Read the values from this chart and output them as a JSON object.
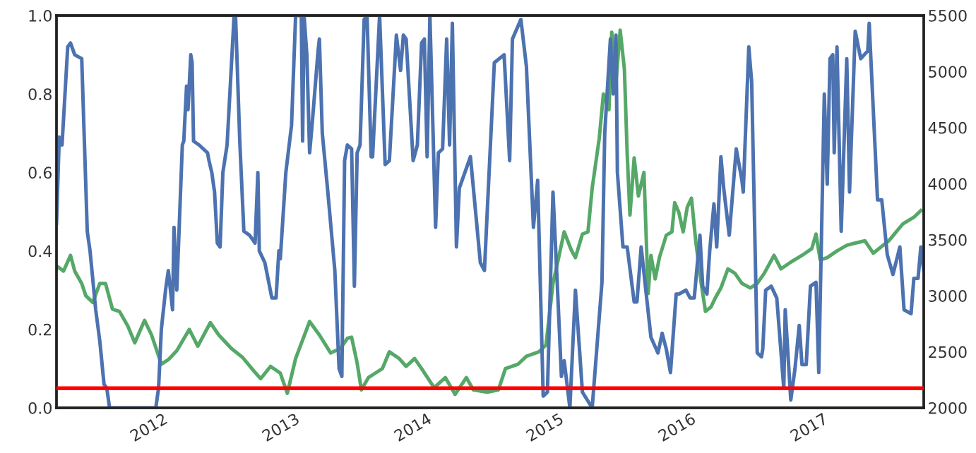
{
  "chart_data": {
    "type": "line",
    "xlim": [
      2011.195,
      2017.763
    ],
    "xticks": [
      2012,
      2013,
      2014,
      2015,
      2016,
      2017
    ],
    "ylim": [
      0,
      1
    ],
    "yticks": [
      {
        "value": 0,
        "label": "0.0"
      },
      {
        "value": 0.2,
        "label": "0.2"
      },
      {
        "value": 0.4,
        "label": "0.4"
      },
      {
        "value": 0.6,
        "label": "0.6"
      },
      {
        "value": 0.8,
        "label": "0.8"
      },
      {
        "value": 1,
        "label": "1.0"
      }
    ],
    "y2lim": [
      2000,
      5500
    ],
    "y2ticks": [
      2000,
      2500,
      3000,
      3500,
      4000,
      4500,
      5000,
      5500
    ],
    "grid": false,
    "line_style": "solid",
    "ref_lines": [
      {
        "axis": "y",
        "value": 0.05,
        "color": "#ff0000",
        "line_style": "solid"
      }
    ],
    "series": [
      {
        "color": "#4c72b0",
        "x": [
          2011.195,
          2011.216,
          2011.237,
          2011.28,
          2011.301,
          2011.333,
          2011.386,
          2011.428,
          2011.449,
          2011.492,
          2011.523,
          2011.555,
          2011.576,
          2011.597,
          2011.947,
          2011.968,
          2011.989,
          2012.021,
          2012.042,
          2012.074,
          2012.085,
          2012.106,
          2012.148,
          2012.159,
          2012.18,
          2012.191,
          2012.212,
          2012.222,
          2012.233,
          2012.275,
          2012.339,
          2012.35,
          2012.371,
          2012.392,
          2012.413,
          2012.434,
          2012.455,
          2012.487,
          2012.54,
          2012.551,
          2012.583,
          2012.614,
          2012.657,
          2012.699,
          2012.72,
          2012.731,
          2012.773,
          2012.826,
          2012.858,
          2012.879,
          2012.89,
          2012.932,
          2012.975,
          2013.006,
          2013.049,
          2013.059,
          2013.07,
          2013.091,
          2013.112,
          2013.133,
          2013.176,
          2013.186,
          2013.208,
          2013.25,
          2013.303,
          2013.335,
          2013.356,
          2013.377,
          2013.398,
          2013.43,
          2013.451,
          2013.472,
          2013.494,
          2013.525,
          2013.547,
          2013.578,
          2013.589,
          2013.642,
          2013.684,
          2013.716,
          2013.769,
          2013.801,
          2013.822,
          2013.843,
          2013.896,
          2013.928,
          2013.96,
          2013.981,
          2014.002,
          2014.023,
          2014.066,
          2014.087,
          2014.119,
          2014.15,
          2014.172,
          2014.193,
          2014.224,
          2014.246,
          2014.33,
          2014.405,
          2014.436,
          2014.511,
          2014.585,
          2014.627,
          2014.648,
          2014.712,
          2014.754,
          2014.807,
          2014.839,
          2014.881,
          2014.913,
          2014.955,
          2014.987,
          2015.019,
          2015.04,
          2015.083,
          2015.125,
          2015.178,
          2015.252,
          2015.326,
          2015.347,
          2015.39,
          2015.411,
          2015.432,
          2015.443,
          2015.485,
          2015.517,
          2015.57,
          2015.591,
          2015.623,
          2015.655,
          2015.697,
          2015.75,
          2015.782,
          2015.813,
          2015.845,
          2015.888,
          2015.909,
          2015.962,
          2015.994,
          2016.025,
          2016.068,
          2016.089,
          2016.121,
          2016.142,
          2016.174,
          2016.195,
          2016.227,
          2016.248,
          2016.29,
          2016.343,
          2016.386,
          2016.396,
          2016.438,
          2016.46,
          2016.502,
          2016.534,
          2016.544,
          2016.566,
          2016.608,
          2016.65,
          2016.703,
          2016.714,
          2016.756,
          2016.788,
          2016.82,
          2016.841,
          2016.873,
          2016.905,
          2016.947,
          2016.968,
          2017.01,
          2017.032,
          2017.053,
          2017.074,
          2017.085,
          2017.106,
          2017.138,
          2017.18,
          2017.201,
          2017.244,
          2017.286,
          2017.339,
          2017.35,
          2017.413,
          2017.445,
          2017.487,
          2017.53,
          2017.582,
          2017.614,
          2017.667,
          2017.688,
          2017.72,
          2017.741,
          2017.763
        ],
        "values": [
          0.47,
          0.69,
          0.67,
          0.92,
          0.93,
          0.9,
          0.89,
          0.45,
          0.4,
          0.25,
          0.17,
          0.06,
          0.05,
          0.0,
          0.0,
          0.05,
          0.2,
          0.3,
          0.35,
          0.25,
          0.46,
          0.3,
          0.67,
          0.68,
          0.82,
          0.76,
          0.9,
          0.88,
          0.68,
          0.67,
          0.65,
          0.63,
          0.6,
          0.55,
          0.42,
          0.41,
          0.6,
          0.67,
          1.0,
          1.0,
          0.68,
          0.45,
          0.44,
          0.42,
          0.6,
          0.4,
          0.37,
          0.28,
          0.28,
          0.4,
          0.38,
          0.6,
          0.72,
          1.0,
          1.0,
          0.68,
          1.0,
          0.9,
          0.65,
          0.73,
          0.91,
          0.94,
          0.7,
          0.55,
          0.35,
          0.1,
          0.08,
          0.63,
          0.67,
          0.66,
          0.31,
          0.65,
          0.67,
          0.99,
          1.0,
          0.64,
          0.64,
          1.0,
          0.62,
          0.63,
          0.95,
          0.86,
          0.95,
          0.94,
          0.63,
          0.67,
          0.93,
          0.94,
          0.64,
          1.0,
          0.46,
          0.65,
          0.66,
          0.94,
          0.67,
          0.98,
          0.41,
          0.56,
          0.64,
          0.37,
          0.35,
          0.88,
          0.9,
          0.63,
          0.94,
          0.99,
          0.87,
          0.46,
          0.58,
          0.03,
          0.04,
          0.55,
          0.32,
          0.08,
          0.12,
          0.0,
          0.3,
          0.04,
          0.0,
          0.32,
          0.7,
          0.94,
          0.8,
          0.95,
          0.6,
          0.41,
          0.41,
          0.27,
          0.27,
          0.41,
          0.31,
          0.18,
          0.14,
          0.19,
          0.15,
          0.09,
          0.29,
          0.29,
          0.3,
          0.28,
          0.28,
          0.44,
          0.31,
          0.29,
          0.4,
          0.52,
          0.41,
          0.64,
          0.56,
          0.44,
          0.66,
          0.58,
          0.55,
          0.92,
          0.83,
          0.14,
          0.13,
          0.15,
          0.3,
          0.31,
          0.28,
          0.05,
          0.25,
          0.02,
          0.1,
          0.21,
          0.11,
          0.11,
          0.31,
          0.32,
          0.09,
          0.8,
          0.57,
          0.89,
          0.9,
          0.65,
          0.92,
          0.45,
          0.89,
          0.55,
          0.96,
          0.89,
          0.91,
          0.98,
          0.53,
          0.53,
          0.39,
          0.34,
          0.41,
          0.25,
          0.24,
          0.33,
          0.33,
          0.41,
          0.35
        ]
      },
      {
        "color": "#55a868",
        "axis": "y2",
        "x": [
          2011.195,
          2011.205,
          2011.248,
          2011.301,
          2011.333,
          2011.386,
          2011.417,
          2011.47,
          2011.523,
          2011.566,
          2011.619,
          2011.672,
          2011.735,
          2011.788,
          2011.862,
          2011.915,
          2011.989,
          2012.042,
          2012.106,
          2012.201,
          2012.265,
          2012.36,
          2012.424,
          2012.519,
          2012.604,
          2012.689,
          2012.741,
          2012.816,
          2012.89,
          2012.943,
          2013.006,
          2013.112,
          2013.186,
          2013.271,
          2013.345,
          2013.398,
          2013.43,
          2013.472,
          2013.504,
          2013.557,
          2013.61,
          2013.663,
          2013.716,
          2013.79,
          2013.843,
          2013.907,
          2013.96,
          2014.055,
          2014.14,
          2014.214,
          2014.299,
          2014.352,
          2014.458,
          2014.542,
          2014.595,
          2014.691,
          2014.754,
          2014.849,
          2014.902,
          2014.955,
          2014.987,
          2015.04,
          2015.093,
          2015.125,
          2015.178,
          2015.22,
          2015.252,
          2015.305,
          2015.337,
          2015.379,
          2015.4,
          2015.432,
          2015.464,
          2015.496,
          2015.517,
          2015.538,
          2015.57,
          2015.602,
          2015.644,
          2015.676,
          2015.697,
          2015.729,
          2015.761,
          2015.813,
          2015.856,
          2015.877,
          2015.909,
          2015.941,
          2015.972,
          2016.004,
          2016.036,
          2016.078,
          2016.11,
          2016.152,
          2016.184,
          2016.227,
          2016.28,
          2016.333,
          2016.386,
          2016.449,
          2016.502,
          2016.555,
          2016.629,
          2016.682,
          2016.756,
          2016.841,
          2016.915,
          2016.947,
          2016.979,
          2017.032,
          2017.106,
          2017.18,
          2017.244,
          2017.318,
          2017.381,
          2017.498,
          2017.604,
          2017.688,
          2017.741
        ],
        "values": [
          3240,
          3260,
          3220,
          3360,
          3220,
          3110,
          3000,
          2940,
          3110,
          3110,
          2880,
          2860,
          2730,
          2580,
          2780,
          2650,
          2390,
          2430,
          2510,
          2700,
          2550,
          2760,
          2650,
          2530,
          2450,
          2330,
          2260,
          2370,
          2310,
          2130,
          2440,
          2770,
          2650,
          2490,
          2530,
          2620,
          2630,
          2400,
          2160,
          2270,
          2310,
          2350,
          2500,
          2440,
          2370,
          2440,
          2350,
          2180,
          2270,
          2120,
          2270,
          2160,
          2140,
          2160,
          2350,
          2390,
          2460,
          2500,
          2560,
          3110,
          3280,
          3570,
          3410,
          3340,
          3550,
          3570,
          3960,
          4400,
          4800,
          4660,
          5350,
          4900,
          5370,
          5020,
          4270,
          3720,
          4230,
          3890,
          4100,
          3020,
          3360,
          3150,
          3340,
          3540,
          3570,
          3830,
          3740,
          3570,
          3790,
          3870,
          3490,
          3110,
          2860,
          2900,
          2980,
          3070,
          3240,
          3200,
          3110,
          3070,
          3110,
          3200,
          3360,
          3240,
          3300,
          3360,
          3420,
          3550,
          3320,
          3340,
          3400,
          3450,
          3470,
          3490,
          3380,
          3490,
          3640,
          3700,
          3760
        ]
      }
    ]
  }
}
